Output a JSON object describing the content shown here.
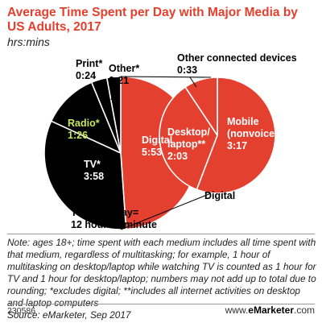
{
  "header": {
    "title": "Average Time Spent per Day with Major Media by US Adults, 2017",
    "subtitle": "hrs:mins"
  },
  "chart_data": [
    {
      "type": "pie",
      "slices": [
        {
          "label": "Digital",
          "value": "5:53",
          "minutes": 353,
          "color": "#e4402f"
        },
        {
          "label": "TV*",
          "value": "3:58",
          "minutes": 238,
          "color": "#000000"
        },
        {
          "label": "Radio*",
          "value": "1:26",
          "minutes": 86,
          "color": "#000000"
        },
        {
          "label": "Print*",
          "value": "0:24",
          "minutes": 24,
          "color": "#000000"
        },
        {
          "label": "Other*",
          "value": "0:21",
          "minutes": 21,
          "color": "#000000"
        }
      ],
      "total_label": "Total per day=",
      "total_value": "12 hours 1 minute"
    },
    {
      "type": "pie",
      "title": "Digital",
      "slices": [
        {
          "label": "Mobile (nonvoice)",
          "value": "3:17",
          "minutes": 197,
          "color": "#e4402f"
        },
        {
          "label": "Desktop/ laptop**",
          "value": "2:03",
          "minutes": 123,
          "color": "#e4402f"
        },
        {
          "label": "Other connected devices",
          "value": "0:33",
          "minutes": 33,
          "color": "#e4402f"
        }
      ]
    }
  ],
  "colors": {
    "accent": "#e4402f",
    "radio_label": "#c7e85a",
    "dark": "#000000"
  },
  "note": "Note: ages 18+; time spent with each medium includes all time spent with that medium, regardless of multitasking; for example, 1 hour of multitasking on desktop/laptop while watching TV is counted as 1 hour for TV and 1 hour for desktop/laptop; numbers may not add up to total due to rounding; *excludes digital; **includes all internet activities on desktop and laptop computers",
  "source": "Source: eMarketer, Sep 2017",
  "footer": {
    "chart_id": "230586",
    "brand_prefix": "www.",
    "brand_name": "eMarketer",
    "brand_suffix": ".com"
  }
}
